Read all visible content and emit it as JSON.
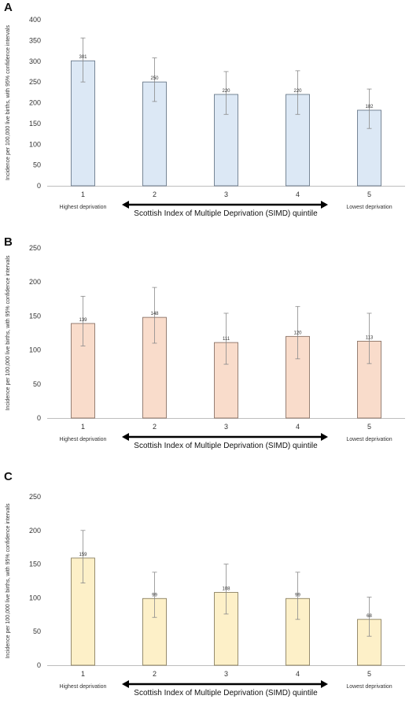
{
  "chart_data": [
    {
      "type": "bar",
      "panel_label": "A",
      "categories": [
        "1",
        "2",
        "3",
        "4",
        "5"
      ],
      "values": [
        301,
        250,
        220,
        220,
        182
      ],
      "error_low": [
        250,
        203,
        172,
        172,
        138
      ],
      "error_high": [
        356,
        308,
        275,
        277,
        233
      ],
      "ylim": [
        0,
        400
      ],
      "yticks": [
        0,
        50,
        100,
        150,
        200,
        250,
        300,
        350,
        400
      ],
      "ylabel": "Incidence per 100,000 live births, with 95% confidence intervals",
      "xlabel": "Scottish Index of Multiple Deprivation (SIMD) quintile",
      "left_end_label": "Highest deprivation",
      "right_end_label": "Lowest deprivation",
      "bar_fill": "#dce8f5",
      "bar_stroke": "#5a6b7d"
    },
    {
      "type": "bar",
      "panel_label": "B",
      "categories": [
        "1",
        "2",
        "3",
        "4",
        "5"
      ],
      "values": [
        139,
        148,
        111,
        120,
        113
      ],
      "error_low": [
        106,
        110,
        79,
        87,
        80
      ],
      "error_high": [
        179,
        192,
        154,
        164,
        154
      ],
      "ylim": [
        0,
        250
      ],
      "yticks": [
        0,
        50,
        100,
        150,
        200,
        250
      ],
      "ylabel": "Incidence per 100,000 live births, with 95% confidence intervals",
      "xlabel": "Scottish Index of Multiple Deprivation (SIMD) quintile",
      "left_end_label": "Highest deprivation",
      "right_end_label": "Lowest deprivation",
      "bar_fill": "#f9dccb",
      "bar_stroke": "#7d6458"
    },
    {
      "type": "bar",
      "panel_label": "C",
      "categories": [
        "1",
        "2",
        "3",
        "4",
        "5"
      ],
      "values": [
        159,
        99,
        108,
        99,
        68
      ],
      "error_low": [
        122,
        71,
        76,
        68,
        43
      ],
      "error_high": [
        200,
        138,
        150,
        138,
        101
      ],
      "ylim": [
        0,
        250
      ],
      "yticks": [
        0,
        50,
        100,
        150,
        200,
        250
      ],
      "ylabel": "Incidence per 100,000 live births, with 95% confidence intervals",
      "xlabel": "Scottish Index of Multiple Deprivation (SIMD) quintile",
      "left_end_label": "Highest deprivation",
      "right_end_label": "Lowest deprivation",
      "bar_fill": "#fdf0c8",
      "bar_stroke": "#7d7250"
    }
  ]
}
